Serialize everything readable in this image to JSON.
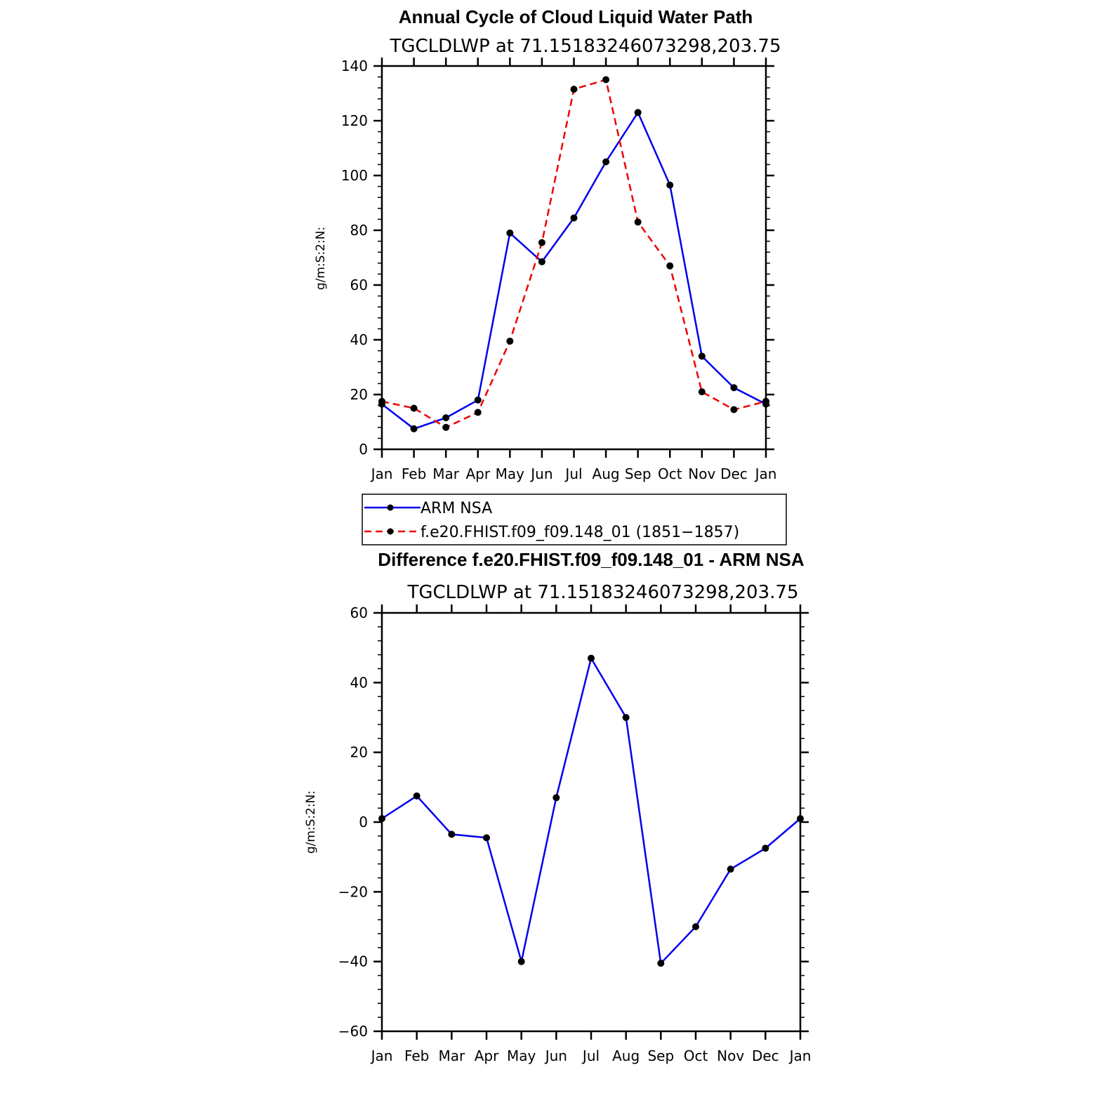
{
  "chart_data": [
    {
      "type": "line",
      "title": "Annual Cycle of Cloud Liquid Water Path",
      "subtitle": "TGCLDLWP at 71.15183246073298,203.75",
      "ylabel": "g/m:S:2:N:",
      "ylim": [
        0,
        140
      ],
      "yticks": [
        "0",
        "20",
        "40",
        "60",
        "80",
        "100",
        "120",
        "140"
      ],
      "categories": [
        "Jan",
        "Feb",
        "Mar",
        "Apr",
        "May",
        "Jun",
        "Jul",
        "Aug",
        "Sep",
        "Oct",
        "Nov",
        "Dec",
        "Jan"
      ],
      "series": [
        {
          "name": "ARM NSA",
          "color": "#0000ee",
          "dash": "solid",
          "values": [
            16.5,
            7.5,
            11.5,
            18,
            79,
            68.5,
            84.5,
            105,
            123,
            96.5,
            34,
            22.5,
            16.5
          ]
        },
        {
          "name": "f.e20.FHIST.f09_f09.148_01 (1851−1857)",
          "color": "#ee0000",
          "dash": "dashed",
          "values": [
            17.5,
            15,
            8,
            13.5,
            39.5,
            75.5,
            131.5,
            135,
            83,
            67,
            21,
            14.5,
            17.5
          ]
        }
      ],
      "legend": [
        "ARM NSA",
        "f.e20.FHIST.f09_f09.148_01 (1851−1857)"
      ]
    },
    {
      "type": "line",
      "title": "Difference f.e20.FHIST.f09_f09.148_01 - ARM NSA",
      "subtitle": "TGCLDLWP at 71.15183246073298,203.75",
      "ylabel": "g/m:S:2:N:",
      "ylim": [
        -60,
        60
      ],
      "yticks": [
        "−60",
        "−40",
        "−20",
        "0",
        "20",
        "40",
        "60"
      ],
      "categories": [
        "Jan",
        "Feb",
        "Mar",
        "Apr",
        "May",
        "Jun",
        "Jul",
        "Aug",
        "Sep",
        "Oct",
        "Nov",
        "Dec",
        "Jan"
      ],
      "series": [
        {
          "name": "Difference",
          "color": "#0000ee",
          "dash": "solid",
          "values": [
            1,
            7.5,
            -3.5,
            -4.5,
            -40,
            7,
            47,
            30,
            -40.5,
            -30,
            -13.5,
            -7.5,
            1
          ]
        }
      ]
    }
  ]
}
